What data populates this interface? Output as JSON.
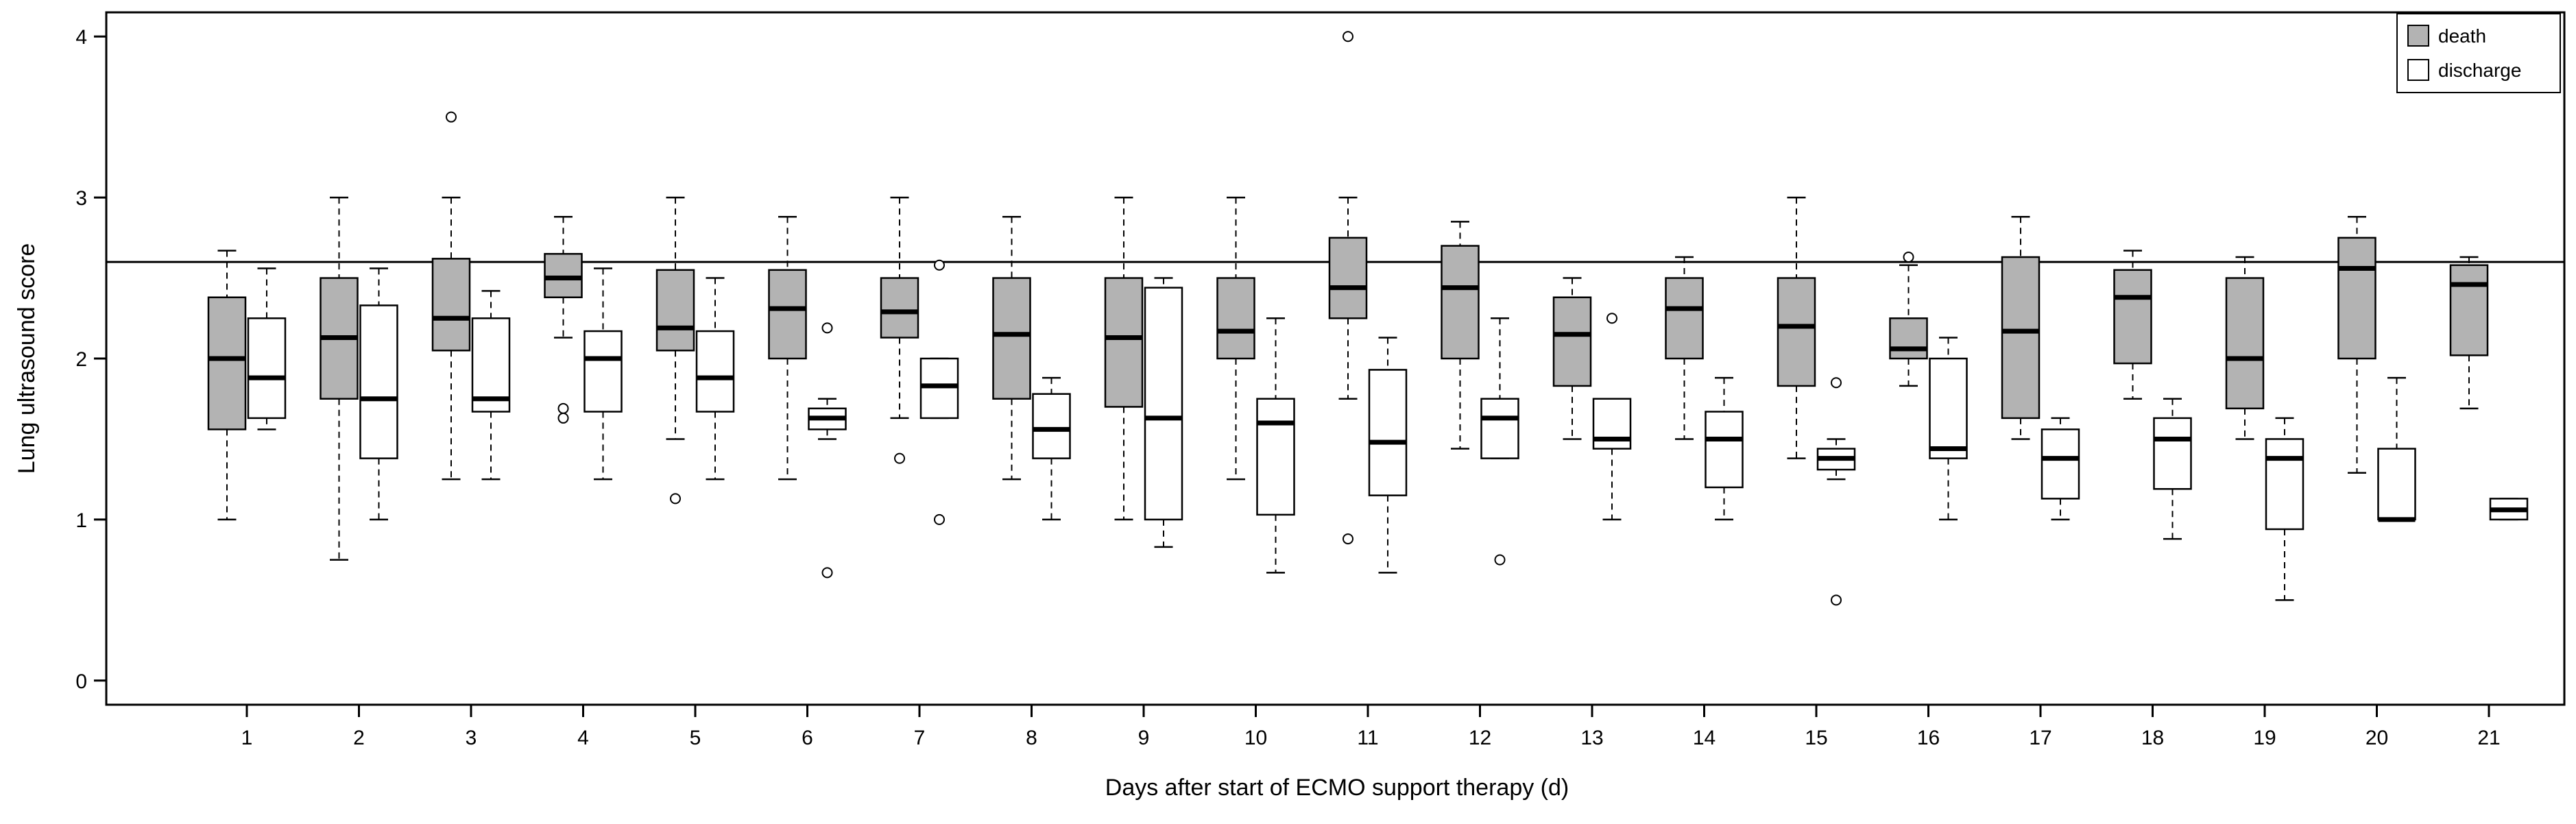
{
  "chart_data": {
    "type": "boxplot",
    "title": "",
    "xlabel": "Days after start of ECMO support therapy (d)",
    "ylabel": "Lung ultrasound score",
    "ylim": [
      -0.15,
      4.15
    ],
    "yticks": [
      "0",
      "1",
      "2",
      "3",
      "4"
    ],
    "reference_line": 2.6,
    "categories": [
      "1",
      "2",
      "3",
      "4",
      "5",
      "6",
      "7",
      "8",
      "9",
      "10",
      "11",
      "12",
      "13",
      "14",
      "15",
      "16",
      "17",
      "18",
      "19",
      "20",
      "21"
    ],
    "legend": [
      {
        "label": "death",
        "color": "#b3b3b3"
      },
      {
        "label": "discharge",
        "color": "#ffffff"
      }
    ],
    "series": [
      {
        "name": "death",
        "color": "#b3b3b3",
        "boxes": [
          {
            "day": "1",
            "whisker_low": 1.0,
            "q1": 1.56,
            "median": 2.0,
            "q3": 2.38,
            "whisker_high": 2.67,
            "outliers": []
          },
          {
            "day": "2",
            "whisker_low": 0.75,
            "q1": 1.75,
            "median": 2.13,
            "q3": 2.5,
            "whisker_high": 3.0,
            "outliers": []
          },
          {
            "day": "3",
            "whisker_low": 1.25,
            "q1": 2.05,
            "median": 2.25,
            "q3": 2.62,
            "whisker_high": 3.0,
            "outliers": [
              3.5
            ]
          },
          {
            "day": "4",
            "whisker_low": 2.13,
            "q1": 2.38,
            "median": 2.5,
            "q3": 2.65,
            "whisker_high": 2.88,
            "outliers": [
              1.69,
              1.63
            ]
          },
          {
            "day": "5",
            "whisker_low": 1.5,
            "q1": 2.05,
            "median": 2.19,
            "q3": 2.55,
            "whisker_high": 3.0,
            "outliers": [
              1.13
            ]
          },
          {
            "day": "6",
            "whisker_low": 1.25,
            "q1": 2.0,
            "median": 2.31,
            "q3": 2.55,
            "whisker_high": 2.88,
            "outliers": []
          },
          {
            "day": "7",
            "whisker_low": 1.63,
            "q1": 2.13,
            "median": 2.29,
            "q3": 2.5,
            "whisker_high": 3.0,
            "outliers": [
              1.38
            ]
          },
          {
            "day": "8",
            "whisker_low": 1.25,
            "q1": 1.75,
            "median": 2.15,
            "q3": 2.5,
            "whisker_high": 2.88,
            "outliers": []
          },
          {
            "day": "9",
            "whisker_low": 1.0,
            "q1": 1.7,
            "median": 2.13,
            "q3": 2.5,
            "whisker_high": 3.0,
            "outliers": []
          },
          {
            "day": "10",
            "whisker_low": 1.25,
            "q1": 2.0,
            "median": 2.17,
            "q3": 2.5,
            "whisker_high": 3.0,
            "outliers": []
          },
          {
            "day": "11",
            "whisker_low": 1.75,
            "q1": 2.25,
            "median": 2.44,
            "q3": 2.75,
            "whisker_high": 3.0,
            "outliers": [
              4.0,
              0.88
            ]
          },
          {
            "day": "12",
            "whisker_low": 1.44,
            "q1": 2.0,
            "median": 2.44,
            "q3": 2.7,
            "whisker_high": 2.85,
            "outliers": []
          },
          {
            "day": "13",
            "whisker_low": 1.5,
            "q1": 1.83,
            "median": 2.15,
            "q3": 2.38,
            "whisker_high": 2.5,
            "outliers": []
          },
          {
            "day": "14",
            "whisker_low": 1.5,
            "q1": 2.0,
            "median": 2.31,
            "q3": 2.5,
            "whisker_high": 2.63,
            "outliers": []
          },
          {
            "day": "15",
            "whisker_low": 1.38,
            "q1": 1.83,
            "median": 2.2,
            "q3": 2.5,
            "whisker_high": 3.0,
            "outliers": []
          },
          {
            "day": "16",
            "whisker_low": 1.83,
            "q1": 2.0,
            "median": 2.06,
            "q3": 2.25,
            "whisker_high": 2.58,
            "outliers": [
              2.63
            ]
          },
          {
            "day": "17",
            "whisker_low": 1.5,
            "q1": 1.63,
            "median": 2.17,
            "q3": 2.63,
            "whisker_high": 2.88,
            "outliers": []
          },
          {
            "day": "18",
            "whisker_low": 1.75,
            "q1": 1.97,
            "median": 2.38,
            "q3": 2.55,
            "whisker_high": 2.67,
            "outliers": []
          },
          {
            "day": "19",
            "whisker_low": 1.5,
            "q1": 1.69,
            "median": 2.0,
            "q3": 2.5,
            "whisker_high": 2.63,
            "outliers": []
          },
          {
            "day": "20",
            "whisker_low": 1.29,
            "q1": 2.0,
            "median": 2.56,
            "q3": 2.75,
            "whisker_high": 2.88,
            "outliers": []
          },
          {
            "day": "21",
            "whisker_low": 1.69,
            "q1": 2.02,
            "median": 2.46,
            "q3": 2.58,
            "whisker_high": 2.63,
            "outliers": []
          }
        ]
      },
      {
        "name": "discharge",
        "color": "#ffffff",
        "boxes": [
          {
            "day": "1",
            "whisker_low": 1.56,
            "q1": 1.63,
            "median": 1.88,
            "q3": 2.25,
            "whisker_high": 2.56,
            "outliers": []
          },
          {
            "day": "2",
            "whisker_low": 1.0,
            "q1": 1.38,
            "median": 1.75,
            "q3": 2.33,
            "whisker_high": 2.56,
            "outliers": []
          },
          {
            "day": "3",
            "whisker_low": 1.25,
            "q1": 1.67,
            "median": 1.75,
            "q3": 2.25,
            "whisker_high": 2.42,
            "outliers": []
          },
          {
            "day": "4",
            "whisker_low": 1.25,
            "q1": 1.67,
            "median": 2.0,
            "q3": 2.17,
            "whisker_high": 2.56,
            "outliers": []
          },
          {
            "day": "5",
            "whisker_low": 1.25,
            "q1": 1.67,
            "median": 1.88,
            "q3": 2.17,
            "whisker_high": 2.5,
            "outliers": []
          },
          {
            "day": "6",
            "whisker_low": 1.5,
            "q1": 1.56,
            "median": 1.63,
            "q3": 1.69,
            "whisker_high": 1.75,
            "outliers": [
              2.19,
              0.67
            ]
          },
          {
            "day": "7",
            "whisker_low": 1.63,
            "q1": 1.63,
            "median": 1.83,
            "q3": 2.0,
            "whisker_high": 2.0,
            "outliers": [
              2.58,
              1.0
            ]
          },
          {
            "day": "8",
            "whisker_low": 1.0,
            "q1": 1.38,
            "median": 1.56,
            "q3": 1.78,
            "whisker_high": 1.88,
            "outliers": []
          },
          {
            "day": "9",
            "whisker_low": 0.83,
            "q1": 1.0,
            "median": 1.63,
            "q3": 2.44,
            "whisker_high": 2.5,
            "outliers": []
          },
          {
            "day": "10",
            "whisker_low": 0.67,
            "q1": 1.03,
            "median": 1.6,
            "q3": 1.75,
            "whisker_high": 2.25,
            "outliers": []
          },
          {
            "day": "11",
            "whisker_low": 0.67,
            "q1": 1.15,
            "median": 1.48,
            "q3": 1.93,
            "whisker_high": 2.13,
            "outliers": []
          },
          {
            "day": "12",
            "whisker_low": 1.38,
            "q1": 1.38,
            "median": 1.63,
            "q3": 1.75,
            "whisker_high": 2.25,
            "outliers": [
              0.75
            ]
          },
          {
            "day": "13",
            "whisker_low": 1.0,
            "q1": 1.44,
            "median": 1.5,
            "q3": 1.75,
            "whisker_high": 1.75,
            "outliers": [
              2.25
            ]
          },
          {
            "day": "14",
            "whisker_low": 1.0,
            "q1": 1.2,
            "median": 1.5,
            "q3": 1.67,
            "whisker_high": 1.88,
            "outliers": []
          },
          {
            "day": "15",
            "whisker_low": 1.25,
            "q1": 1.31,
            "median": 1.38,
            "q3": 1.44,
            "whisker_high": 1.5,
            "outliers": [
              1.85,
              0.5
            ]
          },
          {
            "day": "16",
            "whisker_low": 1.0,
            "q1": 1.38,
            "median": 1.44,
            "q3": 2.0,
            "whisker_high": 2.13,
            "outliers": []
          },
          {
            "day": "17",
            "whisker_low": 1.0,
            "q1": 1.13,
            "median": 1.38,
            "q3": 1.56,
            "whisker_high": 1.63,
            "outliers": []
          },
          {
            "day": "18",
            "whisker_low": 0.88,
            "q1": 1.19,
            "median": 1.5,
            "q3": 1.63,
            "whisker_high": 1.75,
            "outliers": []
          },
          {
            "day": "19",
            "whisker_low": 0.5,
            "q1": 0.94,
            "median": 1.38,
            "q3": 1.5,
            "whisker_high": 1.63,
            "outliers": []
          },
          {
            "day": "20",
            "whisker_low": 1.0,
            "q1": 1.0,
            "median": 1.0,
            "q3": 1.44,
            "whisker_high": 1.88,
            "outliers": []
          },
          {
            "day": "21",
            "whisker_low": 1.0,
            "q1": 1.0,
            "median": 1.06,
            "q3": 1.13,
            "whisker_high": 1.13,
            "outliers": []
          }
        ]
      }
    ]
  }
}
